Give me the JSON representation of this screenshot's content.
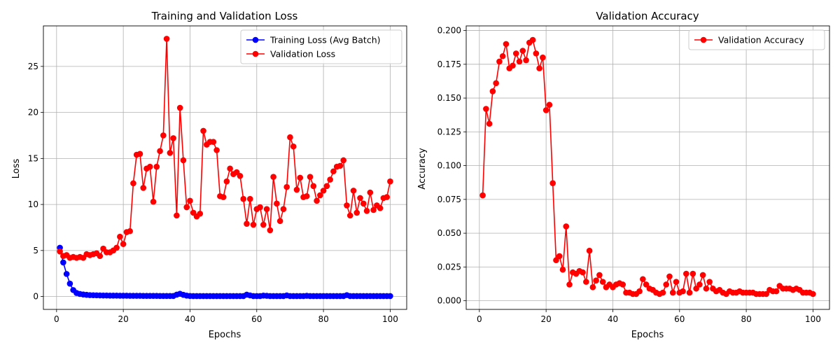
{
  "charts": [
    {
      "title": "Training and Validation Loss",
      "xlabel": "Epochs",
      "ylabel": "Loss",
      "xlim": [
        -3.95,
        104.95
      ],
      "ylim": [
        -1.4,
        29.4
      ],
      "xticks": [
        0,
        20,
        40,
        60,
        80,
        100
      ],
      "yticks": [
        0,
        5,
        10,
        15,
        20,
        25
      ],
      "ytick_format": "int",
      "legend_position": "upper right",
      "grid": true,
      "series": [
        {
          "name": "Training Loss (Avg Batch)",
          "color": "#0000ff",
          "values": [
            5.3,
            3.7,
            2.45,
            1.4,
            0.7,
            0.38,
            0.28,
            0.22,
            0.18,
            0.15,
            0.14,
            0.13,
            0.12,
            0.11,
            0.11,
            0.1,
            0.1,
            0.1,
            0.09,
            0.09,
            0.09,
            0.08,
            0.08,
            0.08,
            0.08,
            0.07,
            0.07,
            0.07,
            0.07,
            0.07,
            0.06,
            0.06,
            0.06,
            0.06,
            0.06,
            0.2,
            0.3,
            0.18,
            0.1,
            0.06,
            0.05,
            0.05,
            0.05,
            0.05,
            0.05,
            0.05,
            0.05,
            0.05,
            0.05,
            0.05,
            0.05,
            0.05,
            0.05,
            0.05,
            0.05,
            0.05,
            0.2,
            0.12,
            0.05,
            0.05,
            0.05,
            0.1,
            0.08,
            0.05,
            0.05,
            0.05,
            0.05,
            0.05,
            0.12,
            0.05,
            0.05,
            0.05,
            0.05,
            0.05,
            0.08,
            0.05,
            0.05,
            0.05,
            0.05,
            0.05,
            0.05,
            0.05,
            0.05,
            0.05,
            0.05,
            0.05,
            0.15,
            0.05,
            0.05,
            0.05,
            0.05,
            0.05,
            0.05,
            0.05,
            0.05,
            0.05,
            0.05,
            0.05,
            0.05,
            0.05
          ]
        },
        {
          "name": "Validation Loss",
          "color": "#ff0000",
          "values": [
            4.9,
            4.4,
            4.5,
            4.2,
            4.3,
            4.2,
            4.3,
            4.2,
            4.6,
            4.5,
            4.6,
            4.7,
            4.4,
            5.2,
            4.8,
            4.8,
            5.0,
            5.3,
            6.5,
            5.7,
            7.0,
            7.1,
            12.3,
            15.4,
            15.5,
            11.8,
            13.9,
            14.1,
            10.3,
            14.1,
            15.8,
            17.5,
            28.0,
            15.6,
            17.2,
            8.8,
            20.5,
            14.8,
            9.7,
            10.4,
            9.1,
            8.7,
            9.0,
            18.0,
            16.5,
            16.8,
            16.8,
            15.9,
            10.9,
            10.8,
            12.5,
            13.9,
            13.3,
            13.5,
            13.1,
            10.6,
            7.9,
            10.6,
            7.8,
            9.5,
            9.7,
            7.8,
            9.5,
            7.2,
            13.0,
            10.1,
            8.2,
            9.5,
            11.9,
            17.3,
            16.3,
            11.6,
            12.9,
            10.8,
            10.9,
            13.0,
            12.0,
            10.4,
            11.0,
            11.5,
            12.0,
            12.7,
            13.6,
            14.1,
            14.2,
            14.8,
            9.9,
            8.8,
            11.5,
            9.1,
            10.7,
            10.1,
            9.3,
            11.3,
            9.4,
            9.9,
            9.6,
            10.7,
            10.8,
            12.5
          ]
        }
      ]
    },
    {
      "title": "Validation Accuracy",
      "xlabel": "Epochs",
      "ylabel": "Accuracy",
      "xlim": [
        -3.95,
        104.95
      ],
      "ylim": [
        -0.0064,
        0.2034
      ],
      "xticks": [
        0,
        20,
        40,
        60,
        80,
        100
      ],
      "yticks": [
        0.0,
        0.025,
        0.05,
        0.075,
        0.1,
        0.125,
        0.15,
        0.175,
        0.2
      ],
      "ytick_format": "3dp",
      "legend_position": "upper right",
      "grid": true,
      "series": [
        {
          "name": "Validation Accuracy",
          "color": "#ff0000",
          "values": [
            0.078,
            0.142,
            0.131,
            0.155,
            0.161,
            0.177,
            0.181,
            0.19,
            0.172,
            0.174,
            0.183,
            0.177,
            0.185,
            0.178,
            0.191,
            0.193,
            0.183,
            0.172,
            0.18,
            0.141,
            0.145,
            0.087,
            0.03,
            0.033,
            0.023,
            0.055,
            0.012,
            0.021,
            0.02,
            0.022,
            0.021,
            0.014,
            0.037,
            0.01,
            0.015,
            0.019,
            0.014,
            0.01,
            0.012,
            0.01,
            0.012,
            0.013,
            0.012,
            0.006,
            0.006,
            0.005,
            0.005,
            0.007,
            0.016,
            0.012,
            0.009,
            0.008,
            0.006,
            0.005,
            0.006,
            0.012,
            0.018,
            0.006,
            0.014,
            0.006,
            0.007,
            0.02,
            0.006,
            0.02,
            0.009,
            0.012,
            0.019,
            0.009,
            0.014,
            0.009,
            0.007,
            0.008,
            0.006,
            0.005,
            0.007,
            0.006,
            0.006,
            0.007,
            0.006,
            0.006,
            0.006,
            0.006,
            0.005,
            0.005,
            0.005,
            0.005,
            0.008,
            0.007,
            0.007,
            0.011,
            0.009,
            0.009,
            0.009,
            0.008,
            0.009,
            0.008,
            0.006,
            0.006,
            0.006,
            0.005
          ]
        }
      ]
    }
  ]
}
